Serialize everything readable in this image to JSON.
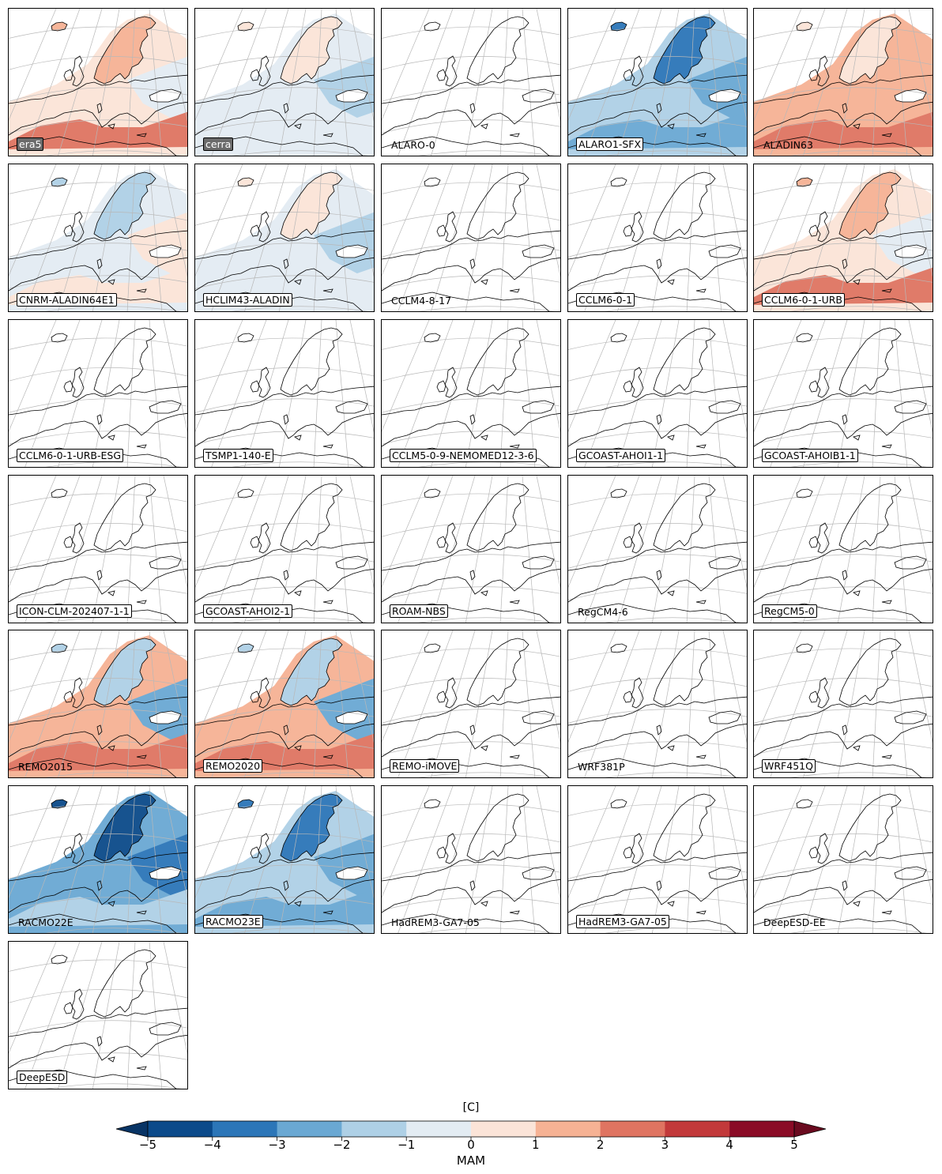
{
  "panels": [
    {
      "label": "era5",
      "style": "dark",
      "field": "warm"
    },
    {
      "label": "cerra",
      "style": "dark",
      "field": "mixed-cool"
    },
    {
      "label": "ALARO-0",
      "style": "plain",
      "field": "none"
    },
    {
      "label": "ALARO1-SFX",
      "style": "boxed",
      "field": "cool"
    },
    {
      "label": "ALADIN63",
      "style": "plain",
      "field": "warm-strong"
    },
    {
      "label": "CNRM-ALADIN64E1",
      "style": "boxed",
      "field": "mixed"
    },
    {
      "label": "HCLIM43-ALADIN",
      "style": "boxed",
      "field": "mixed-cool"
    },
    {
      "label": "CCLM4-8-17",
      "style": "plain",
      "field": "none"
    },
    {
      "label": "CCLM6-0-1",
      "style": "boxed",
      "field": "none"
    },
    {
      "label": "CCLM6-0-1-URB",
      "style": "boxed",
      "field": "warm"
    },
    {
      "label": "CCLM6-0-1-URB-ESG",
      "style": "boxed",
      "field": "none"
    },
    {
      "label": "TSMP1-140-E",
      "style": "boxed",
      "field": "none"
    },
    {
      "label": "CCLM5-0-9-NEMOMED12-3-6",
      "style": "boxed",
      "field": "none"
    },
    {
      "label": "GCOAST-AHOI1-1",
      "style": "boxed",
      "field": "none"
    },
    {
      "label": "GCOAST-AHOIB1-1",
      "style": "boxed",
      "field": "none"
    },
    {
      "label": "ICON-CLM-202407-1-1",
      "style": "boxed",
      "field": "none"
    },
    {
      "label": "GCOAST-AHOI2-1",
      "style": "boxed",
      "field": "none"
    },
    {
      "label": "ROAM-NBS",
      "style": "boxed",
      "field": "none"
    },
    {
      "label": "RegCM4-6",
      "style": "plain",
      "field": "none"
    },
    {
      "label": "RegCM5-0",
      "style": "boxed",
      "field": "none"
    },
    {
      "label": "REMO2015",
      "style": "plain",
      "field": "warm-south"
    },
    {
      "label": "REMO2020",
      "style": "boxed",
      "field": "warm-south"
    },
    {
      "label": "REMO-iMOVE",
      "style": "boxed",
      "field": "none"
    },
    {
      "label": "WRF381P",
      "style": "plain",
      "field": "none"
    },
    {
      "label": "WRF451Q",
      "style": "boxed",
      "field": "none"
    },
    {
      "label": "RACMO22E",
      "style": "plain",
      "field": "cool-strong"
    },
    {
      "label": "RACMO23E",
      "style": "boxed",
      "field": "cool"
    },
    {
      "label": "HadREM3-GA7-05",
      "style": "plain",
      "field": "none"
    },
    {
      "label": "HadREM3-GA7-05",
      "style": "boxed",
      "field": "none"
    },
    {
      "label": "DeepESD-EE",
      "style": "plain",
      "field": "none"
    },
    {
      "label": "DeepESD",
      "style": "boxed",
      "field": "none"
    }
  ],
  "colorbar": {
    "title": "[C]",
    "label": "MAM",
    "ticks": [
      "−5",
      "−4",
      "−3",
      "−2",
      "−1",
      "0",
      "1",
      "2",
      "3",
      "4",
      "5"
    ],
    "bounds": [
      -5,
      -4,
      -3,
      -2,
      -1,
      0,
      1,
      2,
      3,
      4,
      5
    ],
    "colors": [
      "#0b4a8a",
      "#2c76b8",
      "#6aa8d3",
      "#aed0e6",
      "#e3ecf3",
      "#fbe4d8",
      "#f6b294",
      "#df7461",
      "#c2393a",
      "#8a0b26"
    ],
    "under_color": "#083465",
    "over_color": "#6a0a1f"
  }
}
